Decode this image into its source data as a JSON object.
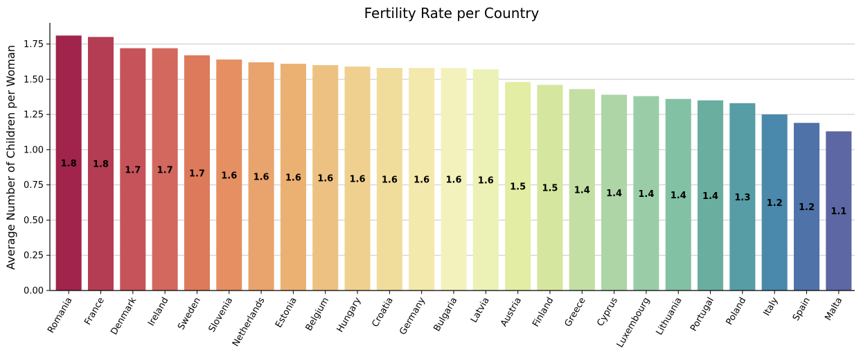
{
  "chart_data": {
    "type": "bar",
    "title": "Fertility Rate per Country",
    "xlabel": "",
    "ylabel": "Average Number of Children per Woman",
    "ylim": [
      0,
      1.9
    ],
    "yticks": [
      "0.00",
      "0.25",
      "0.50",
      "0.75",
      "1.00",
      "1.25",
      "1.50",
      "1.75"
    ],
    "grid": "horizontal",
    "categories": [
      "Romania",
      "France",
      "Denmark",
      "Ireland",
      "Sweden",
      "Slovenia",
      "Netherlands",
      "Estonia",
      "Belgium",
      "Hungary",
      "Croatia",
      "Germany",
      "Bulgaria",
      "Latvia",
      "Austria",
      "Finland",
      "Greece",
      "Cyprus",
      "Luxembourg",
      "Lithuania",
      "Portugal",
      "Poland",
      "Italy",
      "Spain",
      "Malta"
    ],
    "values": [
      1.81,
      1.8,
      1.72,
      1.72,
      1.67,
      1.64,
      1.62,
      1.61,
      1.6,
      1.59,
      1.58,
      1.58,
      1.58,
      1.57,
      1.48,
      1.46,
      1.43,
      1.39,
      1.38,
      1.36,
      1.35,
      1.33,
      1.25,
      1.19,
      1.13
    ],
    "data_labels": [
      "1.8",
      "1.8",
      "1.7",
      "1.7",
      "1.7",
      "1.6",
      "1.6",
      "1.6",
      "1.6",
      "1.6",
      "1.6",
      "1.6",
      "1.6",
      "1.6",
      "1.5",
      "1.5",
      "1.4",
      "1.4",
      "1.4",
      "1.4",
      "1.4",
      "1.3",
      "1.2",
      "1.2",
      "1.1"
    ],
    "colors": [
      "#a0244b",
      "#b43d53",
      "#c7535a",
      "#d3685e",
      "#de7a5c",
      "#e68f63",
      "#e9a36c",
      "#ebb173",
      "#edc182",
      "#efd08f",
      "#f0dd9b",
      "#f3e9ad",
      "#f4f2bc",
      "#ecf1b5",
      "#e3eda3",
      "#d5e69e",
      "#c3dfa4",
      "#aed5a5",
      "#9acda7",
      "#83c1a4",
      "#6aae9f",
      "#569da6",
      "#4a89ab",
      "#4f72a8",
      "#5c67a4"
    ]
  }
}
